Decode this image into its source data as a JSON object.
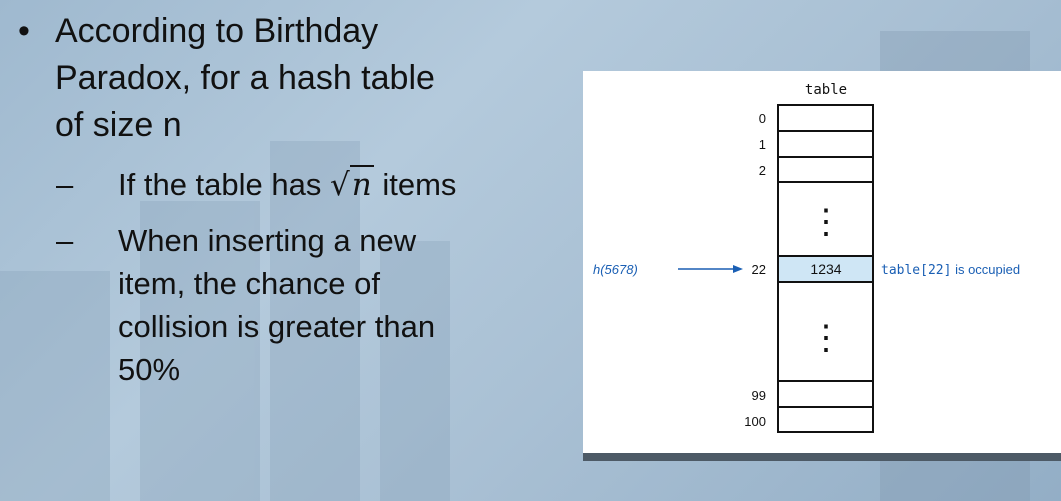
{
  "slide": {
    "bullet_symbol": "•",
    "dash_symbol": "–",
    "main_bullet": {
      "line1": "According to Birthday",
      "line2": "Paradox, for a hash table",
      "line3": "of size n"
    },
    "sub_bullets": [
      {
        "text_before": "If the table has ",
        "sqrt_var": "n",
        "text_after": " items"
      },
      {
        "line1": "When inserting a new",
        "line2": "item, the chance of",
        "line3": "collision is greater than",
        "line4": "50%"
      }
    ]
  },
  "figure": {
    "title": "table",
    "indices": {
      "i0": "0",
      "i1": "1",
      "i2": "2",
      "i22": "22",
      "i99": "99",
      "i100": "100"
    },
    "occupied_value": "1234",
    "hash_label": "h(5678)",
    "annotation_code": "table[22]",
    "annotation_text": " is occupied",
    "ellipsis": "⋮",
    "highlight_color": "#cfe6f5",
    "accent_color": "#1a5fb4"
  }
}
